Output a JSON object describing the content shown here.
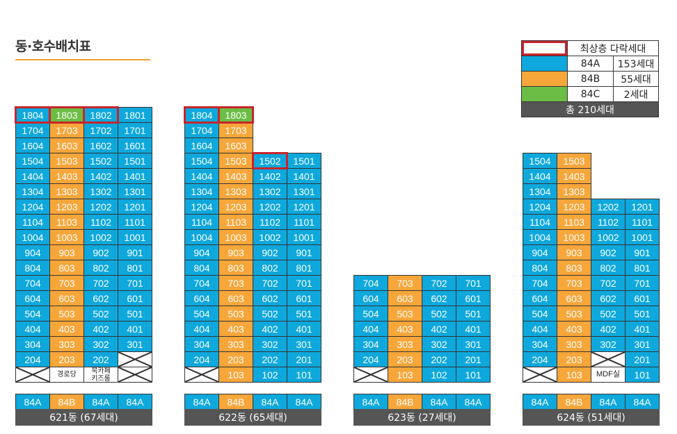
{
  "title": "동·호수배치표",
  "colors": {
    "84A": "#0ea8dc",
    "84B": "#f7a63a",
    "84C": "#6cbd45",
    "highlight": "#c8242b",
    "bar": "#555555"
  },
  "legend": {
    "top_floor_label": "최상층 다락세대",
    "rows": [
      {
        "type": "84A",
        "label": "84A",
        "count": "153세대"
      },
      {
        "type": "84B",
        "label": "84B",
        "count": "55세대"
      },
      {
        "type": "84C",
        "label": "84C",
        "count": "2세대"
      }
    ],
    "total": "총 210세대"
  },
  "buildings": [
    {
      "id": "621",
      "label": "621동 (67세대)",
      "types": [
        "84A",
        "84B",
        "84A",
        "84A"
      ],
      "rows": [
        [
          {
            "n": "1804",
            "t": "84A",
            "top": true
          },
          {
            "n": "1803",
            "t": "84C",
            "top": true
          },
          {
            "n": "1802",
            "t": "84A",
            "top": true
          },
          {
            "n": "1801",
            "t": "84A"
          }
        ],
        [
          {
            "n": "1704",
            "t": "84A"
          },
          {
            "n": "1703",
            "t": "84B"
          },
          {
            "n": "1702",
            "t": "84A"
          },
          {
            "n": "1701",
            "t": "84A"
          }
        ],
        [
          {
            "n": "1604",
            "t": "84A"
          },
          {
            "n": "1603",
            "t": "84B"
          },
          {
            "n": "1602",
            "t": "84A"
          },
          {
            "n": "1601",
            "t": "84A"
          }
        ],
        [
          {
            "n": "1504",
            "t": "84A"
          },
          {
            "n": "1503",
            "t": "84B"
          },
          {
            "n": "1502",
            "t": "84A"
          },
          {
            "n": "1501",
            "t": "84A"
          }
        ],
        [
          {
            "n": "1404",
            "t": "84A"
          },
          {
            "n": "1403",
            "t": "84B"
          },
          {
            "n": "1402",
            "t": "84A"
          },
          {
            "n": "1401",
            "t": "84A"
          }
        ],
        [
          {
            "n": "1304",
            "t": "84A"
          },
          {
            "n": "1303",
            "t": "84B"
          },
          {
            "n": "1302",
            "t": "84A"
          },
          {
            "n": "1301",
            "t": "84A"
          }
        ],
        [
          {
            "n": "1204",
            "t": "84A"
          },
          {
            "n": "1203",
            "t": "84B"
          },
          {
            "n": "1202",
            "t": "84A"
          },
          {
            "n": "1201",
            "t": "84A"
          }
        ],
        [
          {
            "n": "1104",
            "t": "84A"
          },
          {
            "n": "1103",
            "t": "84B"
          },
          {
            "n": "1102",
            "t": "84A"
          },
          {
            "n": "1101",
            "t": "84A"
          }
        ],
        [
          {
            "n": "1004",
            "t": "84A"
          },
          {
            "n": "1003",
            "t": "84B"
          },
          {
            "n": "1002",
            "t": "84A"
          },
          {
            "n": "1001",
            "t": "84A"
          }
        ],
        [
          {
            "n": "904",
            "t": "84A"
          },
          {
            "n": "903",
            "t": "84B"
          },
          {
            "n": "902",
            "t": "84A"
          },
          {
            "n": "901",
            "t": "84A"
          }
        ],
        [
          {
            "n": "804",
            "t": "84A"
          },
          {
            "n": "803",
            "t": "84B"
          },
          {
            "n": "802",
            "t": "84A"
          },
          {
            "n": "801",
            "t": "84A"
          }
        ],
        [
          {
            "n": "704",
            "t": "84A"
          },
          {
            "n": "703",
            "t": "84B"
          },
          {
            "n": "702",
            "t": "84A"
          },
          {
            "n": "701",
            "t": "84A"
          }
        ],
        [
          {
            "n": "604",
            "t": "84A"
          },
          {
            "n": "603",
            "t": "84B"
          },
          {
            "n": "602",
            "t": "84A"
          },
          {
            "n": "601",
            "t": "84A"
          }
        ],
        [
          {
            "n": "504",
            "t": "84A"
          },
          {
            "n": "503",
            "t": "84B"
          },
          {
            "n": "502",
            "t": "84A"
          },
          {
            "n": "501",
            "t": "84A"
          }
        ],
        [
          {
            "n": "404",
            "t": "84A"
          },
          {
            "n": "403",
            "t": "84B"
          },
          {
            "n": "402",
            "t": "84A"
          },
          {
            "n": "401",
            "t": "84A"
          }
        ],
        [
          {
            "n": "304",
            "t": "84A"
          },
          {
            "n": "303",
            "t": "84B"
          },
          {
            "n": "302",
            "t": "84A"
          },
          {
            "n": "301",
            "t": "84A"
          }
        ],
        [
          {
            "n": "204",
            "t": "84A"
          },
          {
            "n": "203",
            "t": "84B"
          },
          {
            "n": "202",
            "t": "84A"
          },
          {
            "n": "",
            "t": "none"
          }
        ],
        [
          {
            "n": "",
            "t": "none"
          },
          {
            "n": "경로당",
            "t": "fac"
          },
          {
            "n": "북카페\n키즈룸",
            "t": "fac"
          },
          {
            "n": "",
            "t": "none"
          }
        ]
      ]
    },
    {
      "id": "622",
      "label": "622동 (65세대)",
      "types": [
        "84A",
        "84B",
        "84A",
        "84A"
      ],
      "rows": [
        [
          {
            "n": "1804",
            "t": "84A",
            "top": true
          },
          {
            "n": "1803",
            "t": "84C",
            "top": true
          },
          null,
          null
        ],
        [
          {
            "n": "1704",
            "t": "84A"
          },
          {
            "n": "1703",
            "t": "84B"
          },
          null,
          null
        ],
        [
          {
            "n": "1604",
            "t": "84A"
          },
          {
            "n": "1603",
            "t": "84B"
          },
          null,
          null
        ],
        [
          {
            "n": "1504",
            "t": "84A"
          },
          {
            "n": "1503",
            "t": "84B"
          },
          {
            "n": "1502",
            "t": "84A",
            "top": true
          },
          {
            "n": "1501",
            "t": "84A"
          }
        ],
        [
          {
            "n": "1404",
            "t": "84A"
          },
          {
            "n": "1403",
            "t": "84B"
          },
          {
            "n": "1402",
            "t": "84A"
          },
          {
            "n": "1401",
            "t": "84A"
          }
        ],
        [
          {
            "n": "1304",
            "t": "84A"
          },
          {
            "n": "1303",
            "t": "84B"
          },
          {
            "n": "1302",
            "t": "84A"
          },
          {
            "n": "1301",
            "t": "84A"
          }
        ],
        [
          {
            "n": "1204",
            "t": "84A"
          },
          {
            "n": "1203",
            "t": "84B"
          },
          {
            "n": "1202",
            "t": "84A"
          },
          {
            "n": "1201",
            "t": "84A"
          }
        ],
        [
          {
            "n": "1104",
            "t": "84A"
          },
          {
            "n": "1103",
            "t": "84B"
          },
          {
            "n": "1102",
            "t": "84A"
          },
          {
            "n": "1101",
            "t": "84A"
          }
        ],
        [
          {
            "n": "1004",
            "t": "84A"
          },
          {
            "n": "1003",
            "t": "84B"
          },
          {
            "n": "1002",
            "t": "84A"
          },
          {
            "n": "1001",
            "t": "84A"
          }
        ],
        [
          {
            "n": "904",
            "t": "84A"
          },
          {
            "n": "903",
            "t": "84B"
          },
          {
            "n": "902",
            "t": "84A"
          },
          {
            "n": "901",
            "t": "84A"
          }
        ],
        [
          {
            "n": "804",
            "t": "84A"
          },
          {
            "n": "803",
            "t": "84B"
          },
          {
            "n": "802",
            "t": "84A"
          },
          {
            "n": "801",
            "t": "84A"
          }
        ],
        [
          {
            "n": "704",
            "t": "84A"
          },
          {
            "n": "703",
            "t": "84B"
          },
          {
            "n": "702",
            "t": "84A"
          },
          {
            "n": "701",
            "t": "84A"
          }
        ],
        [
          {
            "n": "604",
            "t": "84A"
          },
          {
            "n": "603",
            "t": "84B"
          },
          {
            "n": "602",
            "t": "84A"
          },
          {
            "n": "601",
            "t": "84A"
          }
        ],
        [
          {
            "n": "504",
            "t": "84A"
          },
          {
            "n": "503",
            "t": "84B"
          },
          {
            "n": "502",
            "t": "84A"
          },
          {
            "n": "501",
            "t": "84A"
          }
        ],
        [
          {
            "n": "404",
            "t": "84A"
          },
          {
            "n": "403",
            "t": "84B"
          },
          {
            "n": "402",
            "t": "84A"
          },
          {
            "n": "401",
            "t": "84A"
          }
        ],
        [
          {
            "n": "304",
            "t": "84A"
          },
          {
            "n": "303",
            "t": "84B"
          },
          {
            "n": "302",
            "t": "84A"
          },
          {
            "n": "301",
            "t": "84A"
          }
        ],
        [
          {
            "n": "204",
            "t": "84A"
          },
          {
            "n": "203",
            "t": "84B"
          },
          {
            "n": "202",
            "t": "84A"
          },
          {
            "n": "201",
            "t": "84A"
          }
        ],
        [
          {
            "n": "",
            "t": "none"
          },
          {
            "n": "103",
            "t": "84B"
          },
          {
            "n": "102",
            "t": "84A"
          },
          {
            "n": "101",
            "t": "84A"
          }
        ]
      ]
    },
    {
      "id": "623",
      "label": "623동 (27세대)",
      "types": [
        "84A",
        "84B",
        "84A",
        "84A"
      ],
      "rows": [
        null,
        null,
        null,
        null,
        null,
        null,
        null,
        null,
        null,
        null,
        null,
        [
          {
            "n": "704",
            "t": "84A"
          },
          {
            "n": "703",
            "t": "84B"
          },
          {
            "n": "702",
            "t": "84A"
          },
          {
            "n": "701",
            "t": "84A"
          }
        ],
        [
          {
            "n": "604",
            "t": "84A"
          },
          {
            "n": "603",
            "t": "84B"
          },
          {
            "n": "602",
            "t": "84A"
          },
          {
            "n": "601",
            "t": "84A"
          }
        ],
        [
          {
            "n": "504",
            "t": "84A"
          },
          {
            "n": "503",
            "t": "84B"
          },
          {
            "n": "502",
            "t": "84A"
          },
          {
            "n": "501",
            "t": "84A"
          }
        ],
        [
          {
            "n": "404",
            "t": "84A"
          },
          {
            "n": "403",
            "t": "84B"
          },
          {
            "n": "402",
            "t": "84A"
          },
          {
            "n": "401",
            "t": "84A"
          }
        ],
        [
          {
            "n": "304",
            "t": "84A"
          },
          {
            "n": "303",
            "t": "84B"
          },
          {
            "n": "302",
            "t": "84A"
          },
          {
            "n": "301",
            "t": "84A"
          }
        ],
        [
          {
            "n": "204",
            "t": "84A"
          },
          {
            "n": "203",
            "t": "84B"
          },
          {
            "n": "202",
            "t": "84A"
          },
          {
            "n": "201",
            "t": "84A"
          }
        ],
        [
          {
            "n": "",
            "t": "none"
          },
          {
            "n": "103",
            "t": "84B"
          },
          {
            "n": "102",
            "t": "84A"
          },
          {
            "n": "101",
            "t": "84A"
          }
        ]
      ]
    },
    {
      "id": "624",
      "label": "624동 (51세대)",
      "types": [
        "84A",
        "84B",
        "84A",
        "84A"
      ],
      "rows": [
        null,
        null,
        null,
        [
          {
            "n": "1504",
            "t": "84A"
          },
          {
            "n": "1503",
            "t": "84B"
          },
          null,
          null
        ],
        [
          {
            "n": "1404",
            "t": "84A"
          },
          {
            "n": "1403",
            "t": "84B"
          },
          null,
          null
        ],
        [
          {
            "n": "1304",
            "t": "84A"
          },
          {
            "n": "1303",
            "t": "84B"
          },
          null,
          null
        ],
        [
          {
            "n": "1204",
            "t": "84A"
          },
          {
            "n": "1203",
            "t": "84B"
          },
          {
            "n": "1202",
            "t": "84A"
          },
          {
            "n": "1201",
            "t": "84A"
          }
        ],
        [
          {
            "n": "1104",
            "t": "84A"
          },
          {
            "n": "1103",
            "t": "84B"
          },
          {
            "n": "1102",
            "t": "84A"
          },
          {
            "n": "1101",
            "t": "84A"
          }
        ],
        [
          {
            "n": "1004",
            "t": "84A"
          },
          {
            "n": "1003",
            "t": "84B"
          },
          {
            "n": "1002",
            "t": "84A"
          },
          {
            "n": "1001",
            "t": "84A"
          }
        ],
        [
          {
            "n": "904",
            "t": "84A"
          },
          {
            "n": "903",
            "t": "84B"
          },
          {
            "n": "902",
            "t": "84A"
          },
          {
            "n": "901",
            "t": "84A"
          }
        ],
        [
          {
            "n": "804",
            "t": "84A"
          },
          {
            "n": "803",
            "t": "84B"
          },
          {
            "n": "802",
            "t": "84A"
          },
          {
            "n": "801",
            "t": "84A"
          }
        ],
        [
          {
            "n": "704",
            "t": "84A"
          },
          {
            "n": "703",
            "t": "84B"
          },
          {
            "n": "702",
            "t": "84A"
          },
          {
            "n": "701",
            "t": "84A"
          }
        ],
        [
          {
            "n": "604",
            "t": "84A"
          },
          {
            "n": "603",
            "t": "84B"
          },
          {
            "n": "602",
            "t": "84A"
          },
          {
            "n": "601",
            "t": "84A"
          }
        ],
        [
          {
            "n": "504",
            "t": "84A"
          },
          {
            "n": "503",
            "t": "84B"
          },
          {
            "n": "502",
            "t": "84A"
          },
          {
            "n": "501",
            "t": "84A"
          }
        ],
        [
          {
            "n": "404",
            "t": "84A"
          },
          {
            "n": "403",
            "t": "84B"
          },
          {
            "n": "402",
            "t": "84A"
          },
          {
            "n": "401",
            "t": "84A"
          }
        ],
        [
          {
            "n": "304",
            "t": "84A"
          },
          {
            "n": "303",
            "t": "84B"
          },
          {
            "n": "302",
            "t": "84A"
          },
          {
            "n": "301",
            "t": "84A"
          }
        ],
        [
          {
            "n": "204",
            "t": "84A"
          },
          {
            "n": "203",
            "t": "84B"
          },
          {
            "n": "",
            "t": "none"
          },
          {
            "n": "201",
            "t": "84A"
          }
        ],
        [
          {
            "n": "",
            "t": "none"
          },
          {
            "n": "103",
            "t": "84B"
          },
          {
            "n": "MDF실",
            "t": "fac"
          },
          {
            "n": "101",
            "t": "84A"
          }
        ]
      ]
    }
  ]
}
